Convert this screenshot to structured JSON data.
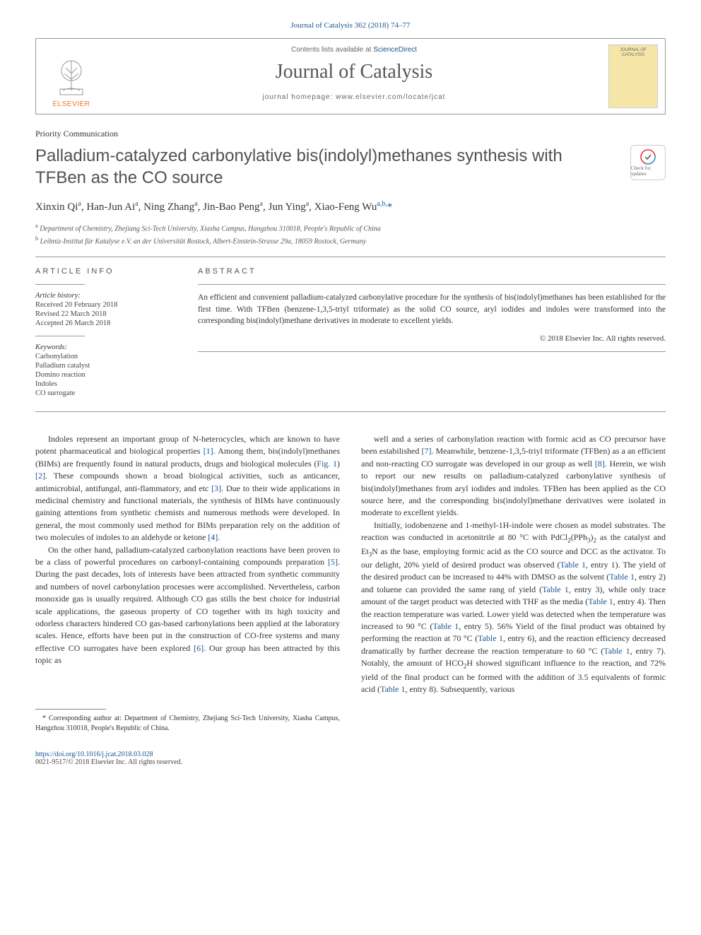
{
  "citation": "Journal of Catalysis 362 (2018) 74–77",
  "header": {
    "contents_prefix": "Contents lists available at ",
    "contents_link": "ScienceDirect",
    "journal_name": "Journal of Catalysis",
    "homepage_prefix": "journal homepage: ",
    "homepage_url": "www.elsevier.com/locate/jcat",
    "publisher_label": "ELSEVIER",
    "cover_title": "JOURNAL OF CATALYSIS"
  },
  "article_type": "Priority Communication",
  "title": "Palladium-catalyzed carbonylative bis(indolyl)methanes synthesis with TFBen as the CO source",
  "crossmark_label": "Check for updates",
  "authors_html": "Xinxin Qi<sup>a</sup>, Han-Jun Ai<sup>a</sup>, Ning Zhang<sup>a</sup>, Jin-Bao Peng<sup>a</sup>, Jun Ying<sup>a</sup>, Xiao-Feng Wu<sup>a,b,</sup><span class='corr'>*</span>",
  "affiliations": [
    {
      "sup": "a",
      "text": "Department of Chemistry, Zhejiang Sci-Tech University, Xiasha Campus, Hangzhou 310018, People's Republic of China"
    },
    {
      "sup": "b",
      "text": "Leibniz-Institut für Katalyse e.V. an der Universität Rostock, Albert-Einstein-Strasse 29a, 18059 Rostock, Germany"
    }
  ],
  "info": {
    "heading": "ARTICLE INFO",
    "history_label": "Article history:",
    "history": [
      "Received 20 February 2018",
      "Revised 22 March 2018",
      "Accepted 26 March 2018"
    ],
    "keywords_label": "Keywords:",
    "keywords": [
      "Carbonylation",
      "Palladium catalyst",
      "Domino reaction",
      "Indoles",
      "CO surrogate"
    ]
  },
  "abstract": {
    "heading": "ABSTRACT",
    "text": "An efficient and convenient palladium-catalyzed carbonylative procedure for the synthesis of bis(indolyl)methanes has been established for the first time. With TFBen (benzene-1,3,5-triyl triformate) as the solid CO source, aryl iodides and indoles were transformed into the corresponding bis(indolyl)methane derivatives in moderate to excellent yields.",
    "copyright": "© 2018 Elsevier Inc. All rights reserved."
  },
  "body": {
    "left": [
      "Indoles represent an important group of N-heterocycles, which are known to have potent pharmaceutical and biological properties <span class='ref-link'>[1]</span>. Among them, bis(indolyl)methanes (BIMs) are frequently found in natural products, drugs and biological molecules (<span class='ref-link'>Fig. 1</span>) <span class='ref-link'>[2]</span>. These compounds shown a broad biological activities, such as anticancer, antimicrobial, antifungal, anti-flammatory, and etc <span class='ref-link'>[3]</span>. Due to their wide applications in medicinal chemistry and functional materials, the synthesis of BIMs have continuously gaining attentions from synthetic chemists and numerous methods were developed. In general, the most commonly used method for BIMs preparation rely on the addition of two molecules of indoles to an aldehyde or ketone <span class='ref-link'>[4]</span>.",
      "On the other hand, palladium-catalyzed carbonylation reactions have been proven to be a class of powerful procedures on carbonyl-containing compounds preparation <span class='ref-link'>[5]</span>. During the past decades, lots of interests have been attracted from synthetic community and numbers of novel carbonylation processes were accomplished. Nevertheless, carbon monoxide gas is usually required. Although CO gas stills the best choice for industrial scale applications, the gaseous property of CO together with its high toxicity and odorless characters hindered CO gas-based carbonylations been applied at the laboratory scales. Hence, efforts have been put in the construction of CO-free systems and many effective CO surrogates have been explored <span class='ref-link'>[6]</span>. Our group has been attracted by this topic as"
    ],
    "right": [
      "well and a series of carbonylation reaction with formic acid as CO precursor have been estabilished <span class='ref-link'>[7]</span>. Meanwhile, benzene-1,3,5-triyl triformate (TFBen) as a an efficient and non-reacting CO surrogate was developed in our group as well <span class='ref-link'>[8]</span>. Herein, we wish to report our new results on palladium-catalyzed carbonylative synthesis of bis(indolyl)methanes from aryl iodides and indoles. TFBen has been applied as the CO source here, and the corresponding bis(indolyl)methane derivatives were isolated in moderate to excellent yields.",
      "Initially, iodobenzene and 1-methyl-1H-indole were chosen as model substrates. The reaction was conducted in acetonitrile at 80 °C with PdCl<sub>2</sub>(PPh<sub>3</sub>)<sub>2</sub> as the catalyst and Et<sub>3</sub>N as the base, employing formic acid as the CO source and DCC as the activator. To our delight, 20% yield of desired product was observed (<span class='ref-link'>Table 1</span>, entry 1). The yield of the desired product can be increased to 44% with DMSO as the solvent (<span class='ref-link'>Table 1</span>, entry 2) and toluene can provided the same rang of yield (<span class='ref-link'>Table 1</span>, entry 3), while only trace amount of the target product was detected with THF as the media (<span class='ref-link'>Table 1</span>, entry 4). Then the reaction temperature was varied. Lower yield was detected when the temperature was increased to 90 °C (<span class='ref-link'>Table 1</span>, entry 5). 56% Yield of the final product was obtained by performing the reaction at 70 °C (<span class='ref-link'>Table 1</span>, entry 6), and the reaction efficiency decreased dramatically by further decrease the reaction temperature to 60 °C (<span class='ref-link'>Table 1</span>, entry 7). Notably, the amount of HCO<sub>2</sub>H showed significant influence to the reaction, and 72% yield of the final product can be formed with the addition of 3.5 equivalents of formic acid (<span class='ref-link'>Table 1</span>, entry 8). Subsequently, various"
    ]
  },
  "footnote": {
    "marker": "*",
    "text": "Corresponding author at: Department of Chemistry, Zhejiang Sci-Tech University, Xiasha Campus, Hangzhou 310018, People's Republic of China."
  },
  "footer": {
    "doi": "https://doi.org/10.1016/j.jcat.2018.03.028",
    "issn_copyright": "0021-9517/© 2018 Elsevier Inc. All rights reserved."
  },
  "colors": {
    "link": "#1a5490",
    "elsevier_orange": "#e87722",
    "text": "#333333",
    "border": "#999999"
  }
}
